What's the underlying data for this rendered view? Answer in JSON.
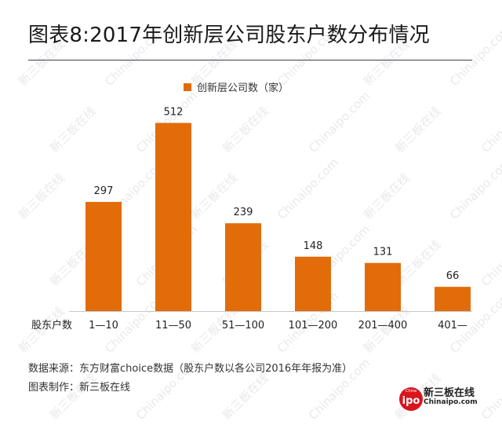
{
  "title": "图表8:2017年创新层公司股东户数分布情况",
  "colors": {
    "bar": "#e36c0a",
    "axis": "#c8c8c8",
    "title_rule": "#3a3f58",
    "logo_red": "#d7161e"
  },
  "chart_data": {
    "type": "bar",
    "category_axis_label": "股东户数",
    "categories": [
      "1—10",
      "11—50",
      "51—100",
      "101—200",
      "201—400",
      "401—"
    ],
    "series": [
      {
        "name": "创新层公司数（家）",
        "values": [
          297,
          512,
          239,
          148,
          131,
          66
        ]
      }
    ],
    "ylim": [
      0,
      560
    ],
    "legend": "top-center",
    "grid": false
  },
  "footer": {
    "source": "数据来源：东方财富choice数据（股东户数以各公司2016年年报为准）",
    "maker": "图表制作：新三板在线"
  },
  "logo": {
    "badge_top": "China",
    "badge_text": "ipo",
    "name": "新三板在线",
    "domain": "Chinaipo.com"
  },
  "watermark": {
    "text_cn": "新三板在线",
    "text_en": "Chinaipo.com"
  }
}
